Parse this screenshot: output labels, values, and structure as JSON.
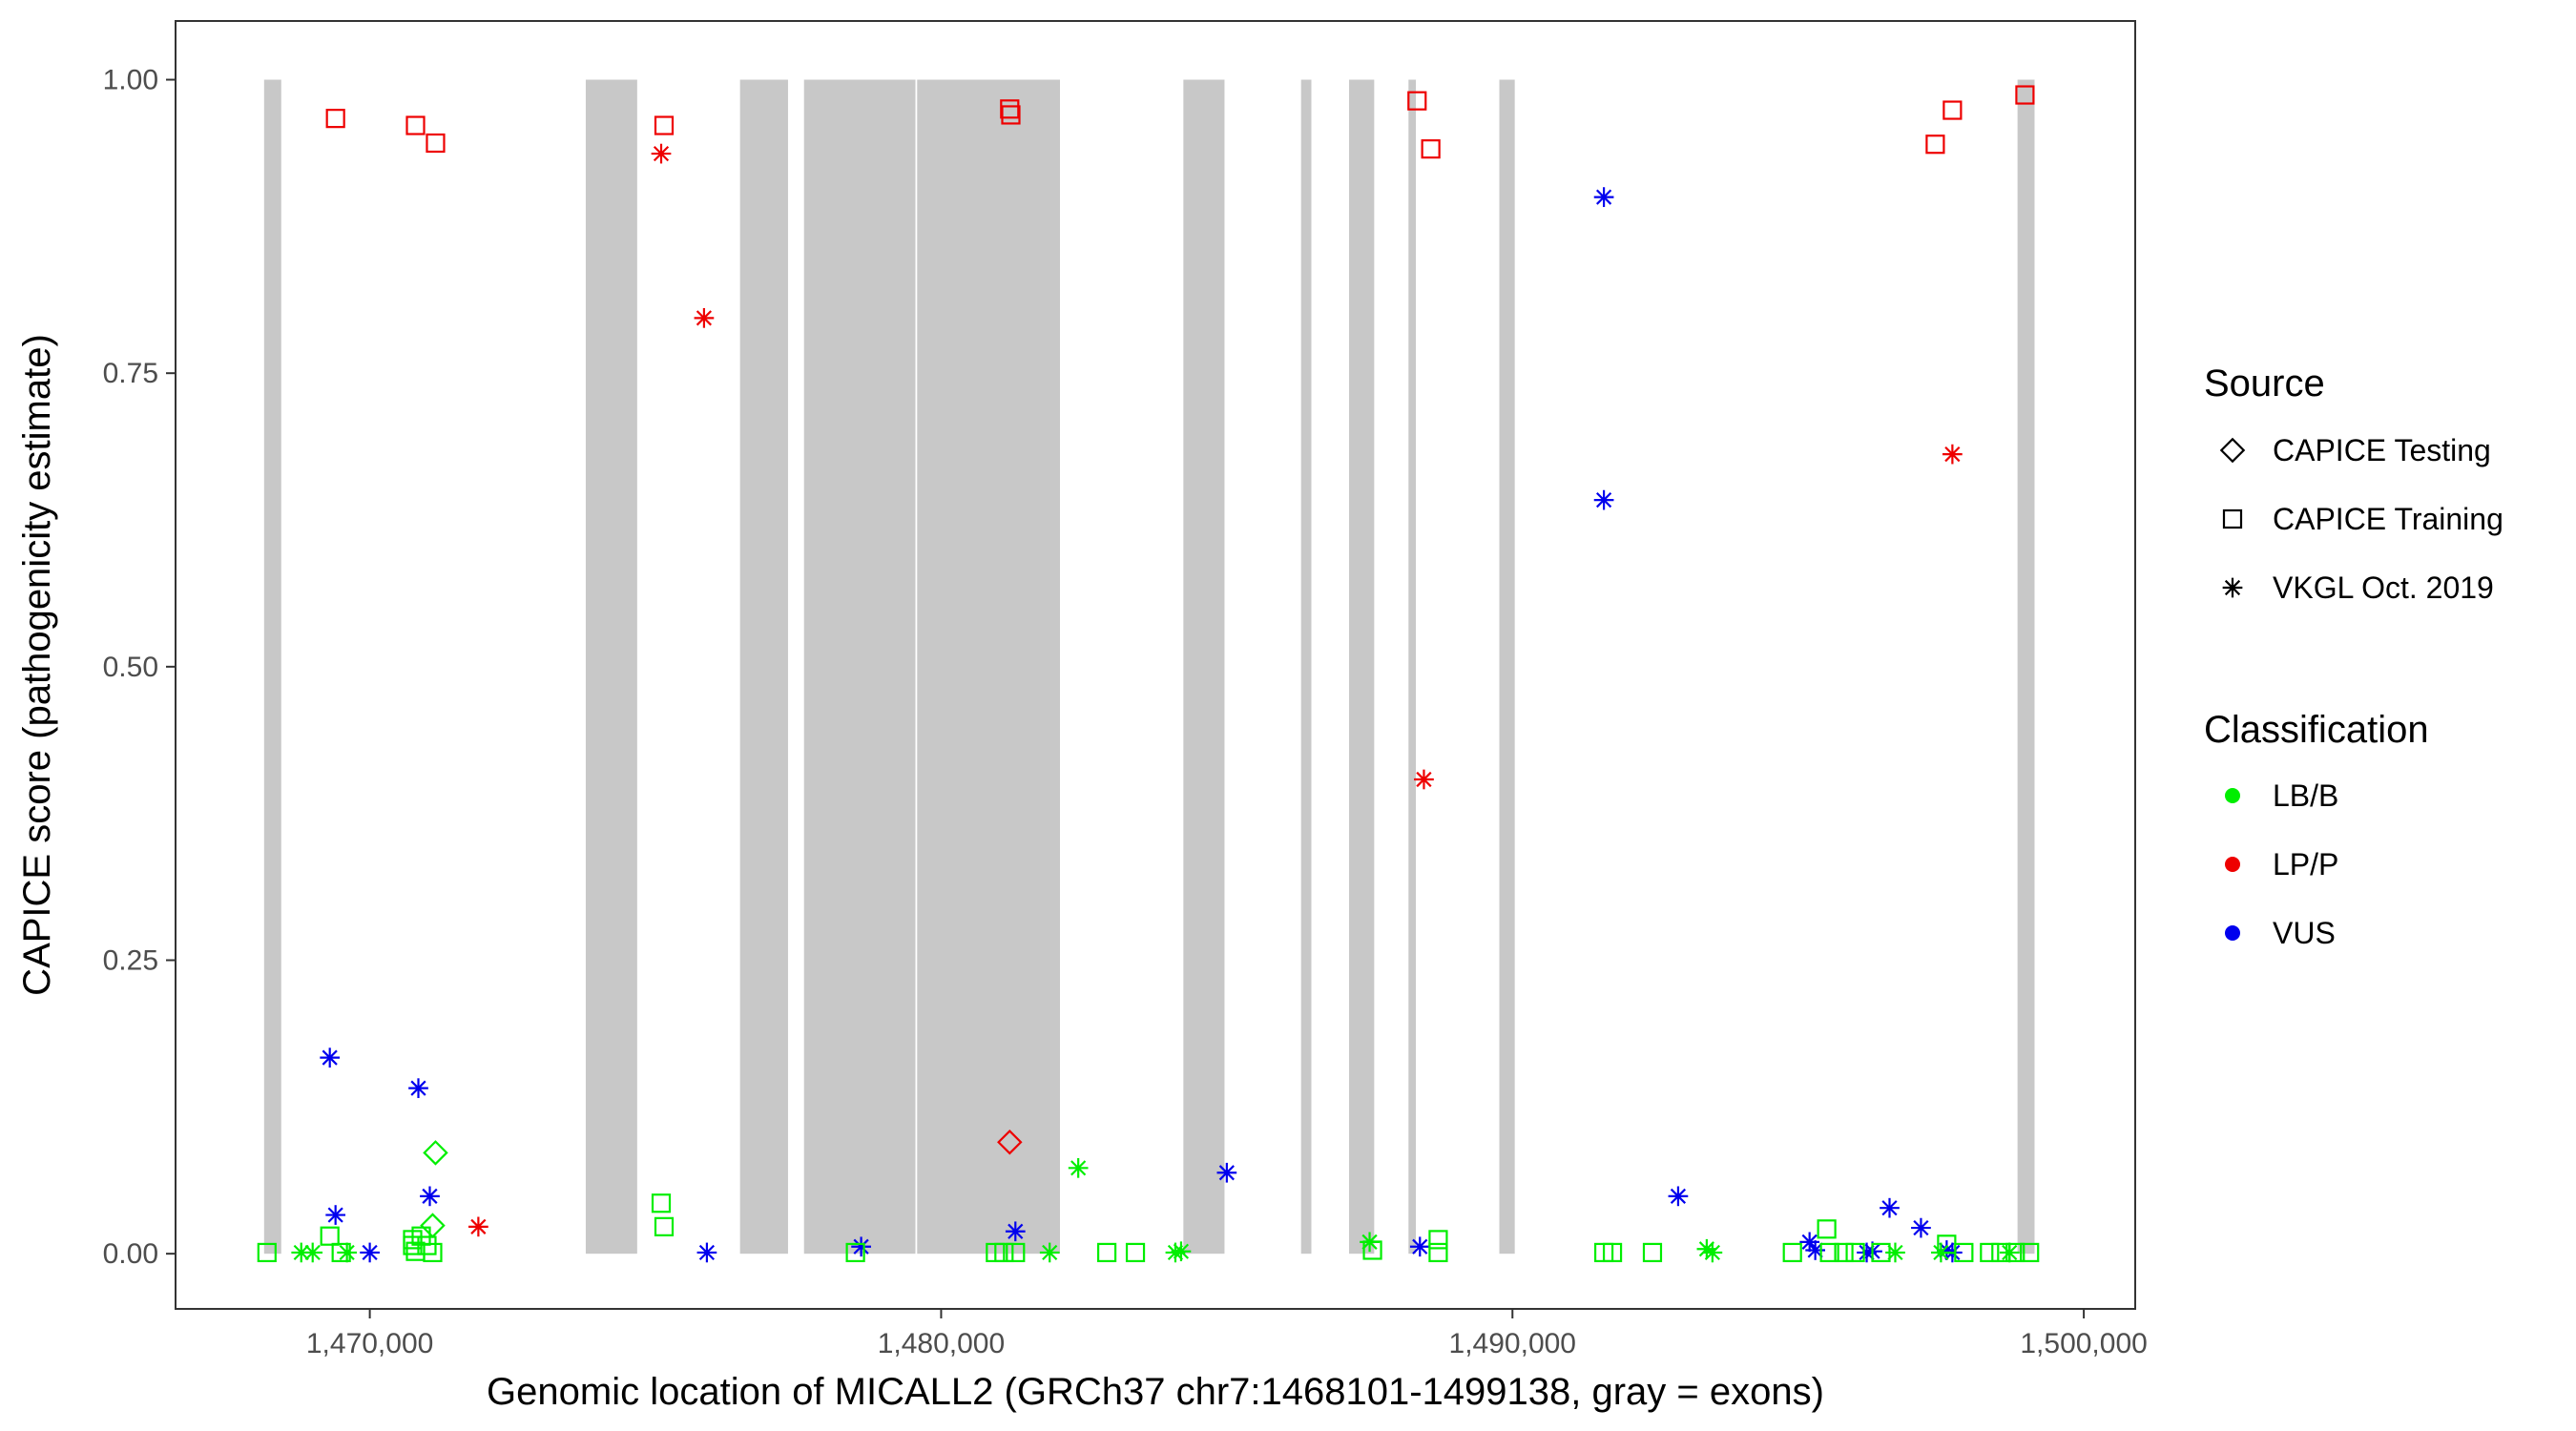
{
  "chart_data": {
    "type": "scatter",
    "xlabel": "Genomic location of MICALL2 (GRCh37 chr7:1468101-1499138, gray = exons)",
    "ylabel": "CAPICE score (pathogenicity estimate)",
    "xlim": [
      1466600,
      1500900
    ],
    "ylim": [
      -0.047,
      1.05
    ],
    "x_ticks": [
      1470000,
      1480000,
      1490000,
      1500000
    ],
    "x_tick_labels": [
      "1,470,000",
      "1,480,000",
      "1,490,000",
      "1,500,000"
    ],
    "y_ticks": [
      0,
      0.25,
      0.5,
      0.75,
      1.0
    ],
    "y_tick_labels": [
      "0.00",
      "0.25",
      "0.50",
      "0.75",
      "1.00"
    ],
    "grid": false,
    "exon_color": "#c8c8c8",
    "exons": [
      [
        1468150,
        1468450
      ],
      [
        1473780,
        1474680
      ],
      [
        1476480,
        1477320
      ],
      [
        1477600,
        1479550
      ],
      [
        1479580,
        1482080
      ],
      [
        1484240,
        1484960
      ],
      [
        1486300,
        1486480
      ],
      [
        1487140,
        1487580
      ],
      [
        1488180,
        1488310
      ],
      [
        1489770,
        1490040
      ],
      [
        1498840,
        1499138
      ]
    ],
    "legends": [
      {
        "title": "Source",
        "position": "right",
        "items": [
          {
            "label": "CAPICE Testing",
            "shape": "diamond"
          },
          {
            "label": "CAPICE Training",
            "shape": "square"
          },
          {
            "label": "VKGL Oct. 2019",
            "shape": "asterisk"
          }
        ]
      },
      {
        "title": "Classification",
        "position": "right",
        "items": [
          {
            "label": "LB/B",
            "color": "#00ee00"
          },
          {
            "label": "LP/P",
            "color": "#ee0000"
          },
          {
            "label": "VUS",
            "color": "#0000ee"
          }
        ]
      }
    ],
    "series": [
      {
        "source": "CAPICE Training",
        "classification": "LP/P",
        "points": [
          [
            1469400,
            0.967
          ],
          [
            1470800,
            0.961
          ],
          [
            1471150,
            0.946
          ],
          [
            1475150,
            0.961
          ],
          [
            1481200,
            0.975
          ],
          [
            1481220,
            0.97
          ],
          [
            1488330,
            0.982
          ],
          [
            1488570,
            0.941
          ],
          [
            1497400,
            0.945
          ],
          [
            1497700,
            0.974
          ],
          [
            1498970,
            0.987
          ]
        ]
      },
      {
        "source": "VKGL Oct. 2019",
        "classification": "LP/P",
        "points": [
          [
            1475100,
            0.937
          ],
          [
            1475850,
            0.797
          ],
          [
            1488450,
            0.404
          ],
          [
            1497700,
            0.681
          ],
          [
            1471900,
            0.023
          ]
        ]
      },
      {
        "source": "CAPICE Testing",
        "classification": "LP/P",
        "points": [
          [
            1481200,
            0.095
          ]
        ]
      },
      {
        "source": "VKGL Oct. 2019",
        "classification": "VUS",
        "points": [
          [
            1491600,
            0.9
          ],
          [
            1491600,
            0.642
          ],
          [
            1469300,
            0.167
          ],
          [
            1470850,
            0.141
          ],
          [
            1471050,
            0.049
          ],
          [
            1469400,
            0.033
          ],
          [
            1485000,
            0.069
          ],
          [
            1492900,
            0.049
          ],
          [
            1481300,
            0.019
          ],
          [
            1496600,
            0.039
          ],
          [
            1497150,
            0.022
          ],
          [
            1478600,
            0.006
          ],
          [
            1475900,
            0.001
          ],
          [
            1488380,
            0.006
          ],
          [
            1495200,
            0.01
          ],
          [
            1495300,
            0.003
          ],
          [
            1496300,
            0.002
          ],
          [
            1496200,
            0.001
          ],
          [
            1497600,
            0.003
          ],
          [
            1497700,
            0.001
          ],
          [
            1470000,
            0.001
          ]
        ]
      },
      {
        "source": "CAPICE Testing",
        "classification": "LB/B",
        "points": [
          [
            1471150,
            0.086
          ],
          [
            1471100,
            0.024
          ]
        ]
      },
      {
        "source": "VKGL Oct. 2019",
        "classification": "LB/B",
        "points": [
          [
            1482400,
            0.073
          ],
          [
            1487500,
            0.01
          ],
          [
            1493400,
            0.004
          ],
          [
            1493500,
            0.001
          ],
          [
            1484100,
            0.001
          ],
          [
            1484200,
            0.002
          ],
          [
            1468800,
            0.001
          ],
          [
            1469000,
            0.001
          ],
          [
            1469600,
            0.001
          ],
          [
            1481900,
            0.001
          ],
          [
            1496700,
            0.001
          ],
          [
            1497500,
            0.001
          ],
          [
            1498700,
            0.001
          ]
        ]
      },
      {
        "source": "CAPICE Training",
        "classification": "LB/B",
        "points": [
          [
            1475100,
            0.043
          ],
          [
            1475150,
            0.023
          ],
          [
            1469300,
            0.015
          ],
          [
            1470750,
            0.012
          ],
          [
            1470900,
            0.015
          ],
          [
            1470750,
            0.007
          ],
          [
            1471000,
            0.007
          ],
          [
            1470800,
            0.002
          ],
          [
            1471100,
            0.001
          ],
          [
            1468200,
            0.001
          ],
          [
            1469500,
            0.001
          ],
          [
            1478500,
            0.001
          ],
          [
            1480950,
            0.001
          ],
          [
            1481100,
            0.001
          ],
          [
            1481300,
            0.001
          ],
          [
            1482900,
            0.001
          ],
          [
            1483400,
            0.001
          ],
          [
            1487550,
            0.003
          ],
          [
            1488700,
            0.012
          ],
          [
            1488700,
            0.001
          ],
          [
            1491600,
            0.001
          ],
          [
            1491750,
            0.001
          ],
          [
            1492450,
            0.001
          ],
          [
            1494900,
            0.001
          ],
          [
            1495500,
            0.021
          ],
          [
            1495550,
            0.001
          ],
          [
            1495800,
            0.001
          ],
          [
            1496000,
            0.001
          ],
          [
            1496450,
            0.001
          ],
          [
            1497600,
            0.008
          ],
          [
            1497900,
            0.001
          ],
          [
            1498350,
            0.001
          ],
          [
            1498550,
            0.001
          ],
          [
            1498800,
            0.001
          ],
          [
            1499050,
            0.001
          ]
        ]
      }
    ]
  }
}
